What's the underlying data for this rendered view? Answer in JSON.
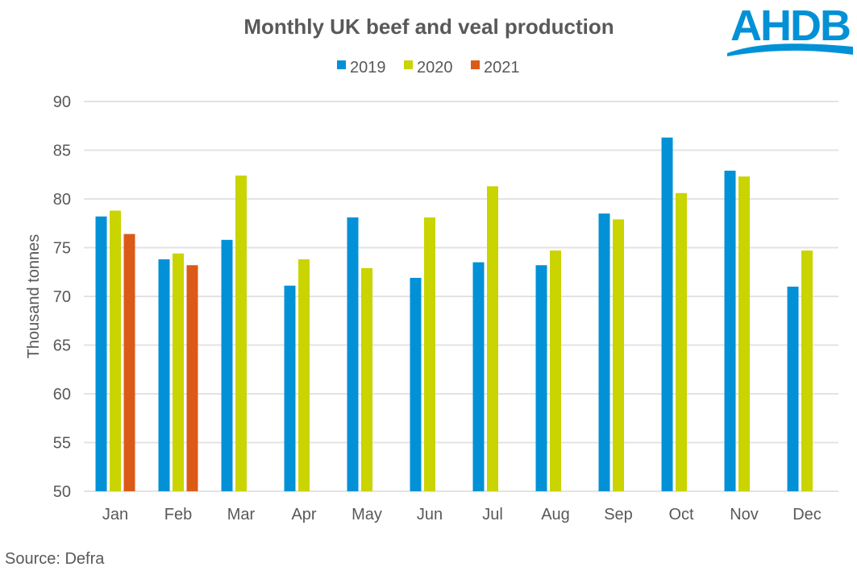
{
  "chart_data": {
    "type": "bar",
    "title": "Monthly UK beef and veal production",
    "xlabel": "",
    "ylabel": "Thousand tonnes",
    "ylim": [
      50,
      90
    ],
    "yticks": [
      50,
      55,
      60,
      65,
      70,
      75,
      80,
      85,
      90
    ],
    "grid": true,
    "legend_position": "top",
    "categories": [
      "Jan",
      "Feb",
      "Mar",
      "Apr",
      "May",
      "Jun",
      "Jul",
      "Aug",
      "Sep",
      "Oct",
      "Nov",
      "Dec"
    ],
    "series": [
      {
        "name": "2019",
        "color": "#0291d6",
        "values": [
          78.2,
          73.8,
          75.8,
          71.1,
          78.1,
          71.9,
          73.5,
          73.2,
          78.5,
          86.3,
          82.9,
          71.0
        ]
      },
      {
        "name": "2020",
        "color": "#c9d400",
        "values": [
          78.8,
          74.4,
          82.4,
          73.8,
          72.9,
          78.1,
          81.3,
          74.7,
          77.9,
          80.6,
          82.3,
          74.7
        ]
      },
      {
        "name": "2021",
        "color": "#dc5a17",
        "values": [
          76.4,
          73.2,
          null,
          null,
          null,
          null,
          null,
          null,
          null,
          null,
          null,
          null
        ]
      }
    ]
  },
  "source": "Source: Defra",
  "logo": {
    "text": "AHDB",
    "color": "#0291d6"
  }
}
